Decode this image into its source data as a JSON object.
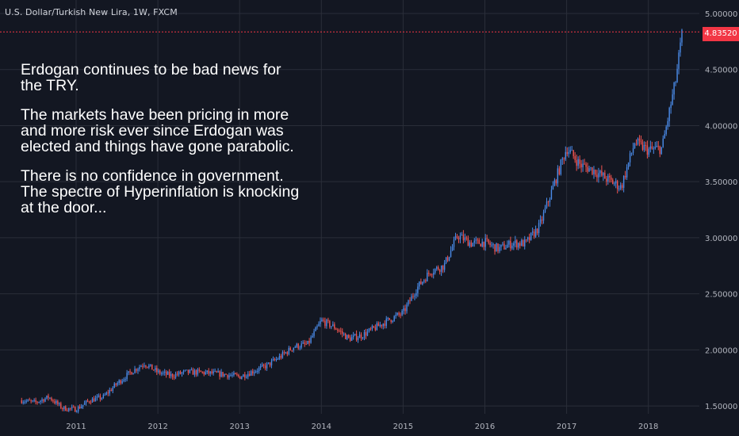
{
  "title": "U.S. Dollar/Turkish New Lira, 1W, FXCM",
  "annotation": [
    "Erdogan continues to be bad news for\nthe TRY.",
    "The markets have been pricing in more\nand more risk ever since Erdogan was\nelected and things have gone parabolic.",
    "There is no confidence in government.\nThe spectre of Hyperinflation is knocking\nat the door..."
  ],
  "colors": {
    "background": "#131722",
    "grid": "#2a2e39",
    "up_candle": "#4a8be8",
    "down_candle": "#ef5350",
    "price_line": "#f23645"
  },
  "chart_data": {
    "type": "line",
    "style": "weekly candlesticks",
    "x_tick_labels": [
      "2011",
      "2012",
      "2013",
      "2014",
      "2015",
      "2016",
      "2017",
      "2018"
    ],
    "y_tick_labels": [
      "1.50000",
      "2.00000",
      "2.50000",
      "3.00000",
      "3.50000",
      "4.00000",
      "4.50000",
      "5.00000"
    ],
    "ylim": [
      1.43,
      5.12
    ],
    "last_price": 4.8352,
    "last_price_label": "4.83520",
    "grid": true,
    "series": [
      {
        "x": [
          "2010-05",
          "2010-07",
          "2010-09",
          "2010-11",
          "2011-01",
          "2011-03",
          "2011-05",
          "2011-07",
          "2011-09",
          "2011-11",
          "2012-01",
          "2012-03",
          "2012-05",
          "2012-07",
          "2012-09",
          "2012-11",
          "2013-01",
          "2013-03",
          "2013-05",
          "2013-07",
          "2013-09",
          "2013-11",
          "2014-01",
          "2014-03",
          "2014-05",
          "2014-07",
          "2014-09",
          "2014-11",
          "2015-01",
          "2015-03",
          "2015-05",
          "2015-07",
          "2015-09",
          "2015-11",
          "2016-01",
          "2016-03",
          "2016-05",
          "2016-07",
          "2016-09",
          "2016-11",
          "2017-01",
          "2017-03",
          "2017-05",
          "2017-07",
          "2017-09",
          "2017-11",
          "2018-01",
          "2018-03",
          "2018-05",
          "2018-06"
        ],
        "values": [
          1.55,
          1.53,
          1.58,
          1.48,
          1.47,
          1.55,
          1.58,
          1.7,
          1.8,
          1.88,
          1.8,
          1.77,
          1.8,
          1.8,
          1.79,
          1.78,
          1.76,
          1.81,
          1.86,
          1.94,
          2.03,
          2.05,
          2.26,
          2.2,
          2.1,
          2.13,
          2.2,
          2.27,
          2.33,
          2.55,
          2.7,
          2.75,
          3.02,
          2.95,
          2.96,
          2.9,
          2.95,
          2.95,
          3.1,
          3.45,
          3.8,
          3.65,
          3.6,
          3.52,
          3.45,
          3.85,
          3.78,
          3.8,
          4.4,
          4.84
        ]
      }
    ]
  }
}
